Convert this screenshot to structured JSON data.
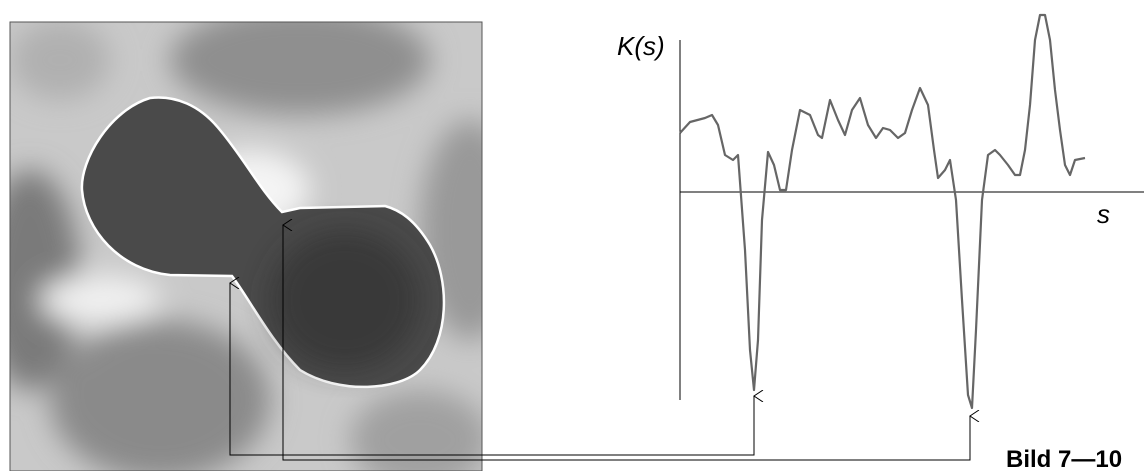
{
  "figure": {
    "y_axis_label": "K(s)",
    "x_axis_label": "s",
    "caption": "Bild 7—10"
  }
}
